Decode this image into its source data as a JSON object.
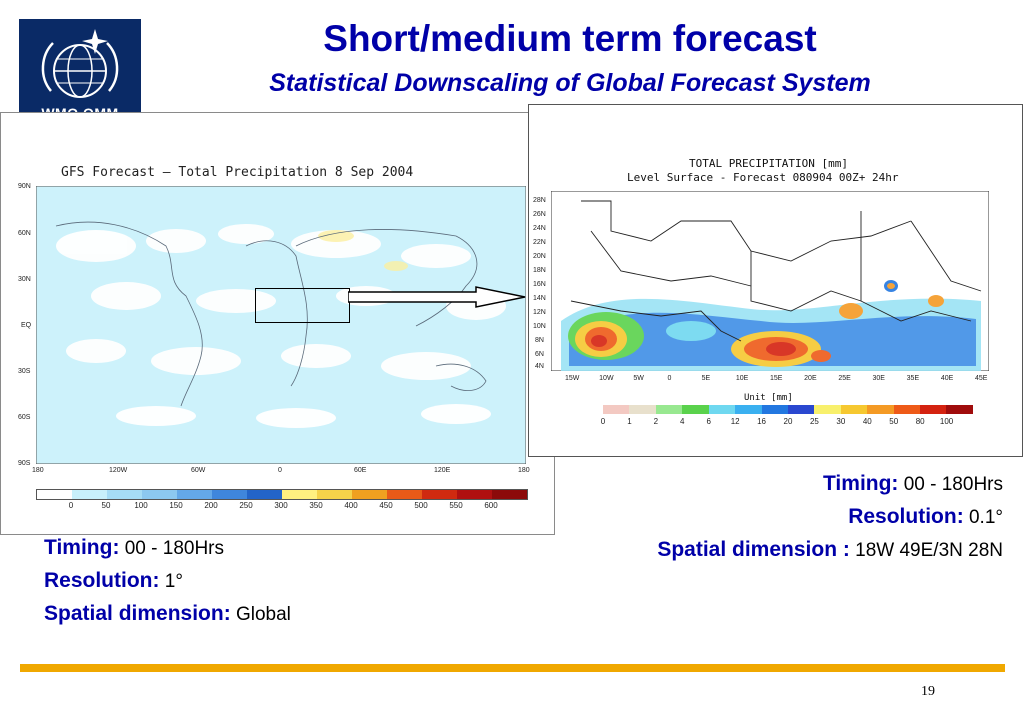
{
  "header": {
    "title": "Short/medium term forecast",
    "subtitle": "Statistical Downscaling of Global Forecast System"
  },
  "logo": {
    "text": "WMO OMM",
    "icon": "wmo-emblem-icon"
  },
  "global_map": {
    "title": "GFS Forecast — Total Precipitation 8 Sep 2004",
    "lat_ticks": [
      "90N",
      "60N",
      "30N",
      "EQ",
      "30S",
      "60S",
      "90S"
    ],
    "lon_ticks": [
      "180",
      "120W",
      "60W",
      "0",
      "60E",
      "120E",
      "180"
    ],
    "colorbar_labels": [
      "0",
      "50",
      "100",
      "150",
      "200",
      "250",
      "300",
      "350",
      "400",
      "450",
      "500",
      "550",
      "600"
    ],
    "colorbar_colors": [
      "#ffffff",
      "#c8f0fb",
      "#a6dcf5",
      "#8cc8f0",
      "#64a8e8",
      "#3f86dc",
      "#2364c8",
      "#fff080",
      "#f5d24a",
      "#f0a020",
      "#e85a18",
      "#d02a10",
      "#b01010",
      "#8c0a0a"
    ]
  },
  "regional_map": {
    "title_line1": "TOTAL PRECIPITATION [mm]",
    "title_line2": "Level Surface - Forecast 080904 00Z+ 24hr",
    "lat_ticks": [
      "28N",
      "26N",
      "24N",
      "22N",
      "20N",
      "18N",
      "16N",
      "14N",
      "12N",
      "10N",
      "8N",
      "6N",
      "4N"
    ],
    "lon_ticks": [
      "15W",
      "10W",
      "5W",
      "0",
      "5E",
      "10E",
      "15E",
      "20E",
      "25E",
      "30E",
      "35E",
      "40E",
      "45E"
    ],
    "unit_label": "Unit [mm]",
    "colorbar_labels": [
      "0",
      "1",
      "2",
      "4",
      "6",
      "12",
      "16",
      "20",
      "25",
      "30",
      "40",
      "50",
      "80",
      "100"
    ],
    "colorbar_colors": [
      "#f3c9c2",
      "#e8e0cc",
      "#98e890",
      "#5ad24c",
      "#6fd8f0",
      "#3ab0f0",
      "#2277e0",
      "#2a48d0",
      "#f8f06c",
      "#f6c830",
      "#f49a24",
      "#ee5a18",
      "#d42210",
      "#a00c0c"
    ]
  },
  "right_info": {
    "timing_label": "Timing:",
    "timing_value": "00 - 180Hrs",
    "resolution_label": "Resolution:",
    "resolution_value": "0.1°",
    "spatial_label": "Spatial dimension :",
    "spatial_value": "18W 49E/3N 28N"
  },
  "left_info": {
    "timing_label": "Timing:",
    "timing_value": "00 - 180Hrs",
    "resolution_label": "Resolution:",
    "resolution_value": "1°",
    "spatial_label": "Spatial dimension:",
    "spatial_value": "Global"
  },
  "footer": {
    "page_number": "19",
    "bar_color": "#f0a800"
  }
}
